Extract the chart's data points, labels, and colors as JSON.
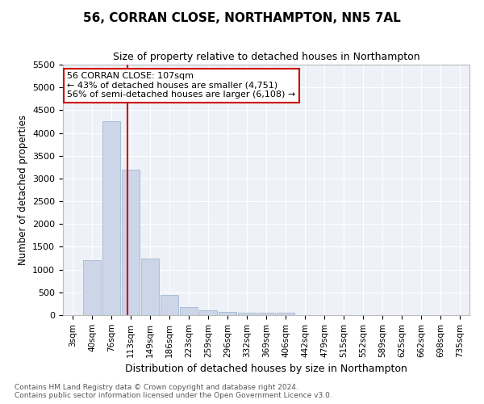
{
  "title1": "56, CORRAN CLOSE, NORTHAMPTON, NN5 7AL",
  "title2": "Size of property relative to detached houses in Northampton",
  "xlabel": "Distribution of detached houses by size in Northampton",
  "ylabel": "Number of detached properties",
  "footer1": "Contains HM Land Registry data © Crown copyright and database right 2024.",
  "footer2": "Contains public sector information licensed under the Open Government Licence v3.0.",
  "annotation_title": "56 CORRAN CLOSE: 107sqm",
  "annotation_line1": "← 43% of detached houses are smaller (4,751)",
  "annotation_line2": "56% of semi-detached houses are larger (6,108) →",
  "bar_color": "#ccd6e8",
  "bar_edge_color": "#99aec8",
  "vline_color": "#cc0000",
  "annotation_box_edgecolor": "#cc0000",
  "background_color": "#eef2f8",
  "grid_color": "#ffffff",
  "categories": [
    "3sqm",
    "40sqm",
    "76sqm",
    "113sqm",
    "149sqm",
    "186sqm",
    "223sqm",
    "259sqm",
    "296sqm",
    "332sqm",
    "369sqm",
    "406sqm",
    "442sqm",
    "479sqm",
    "515sqm",
    "552sqm",
    "589sqm",
    "625sqm",
    "662sqm",
    "698sqm",
    "735sqm"
  ],
  "values": [
    0,
    1200,
    4250,
    3200,
    1250,
    450,
    175,
    100,
    75,
    60,
    50,
    45,
    0,
    0,
    0,
    0,
    0,
    0,
    0,
    0,
    0
  ],
  "ylim": [
    0,
    5500
  ],
  "yticks": [
    0,
    500,
    1000,
    1500,
    2000,
    2500,
    3000,
    3500,
    4000,
    4500,
    5000,
    5500
  ],
  "vline_x_index": 2.85,
  "figwidth": 6.0,
  "figheight": 5.0,
  "dpi": 100
}
